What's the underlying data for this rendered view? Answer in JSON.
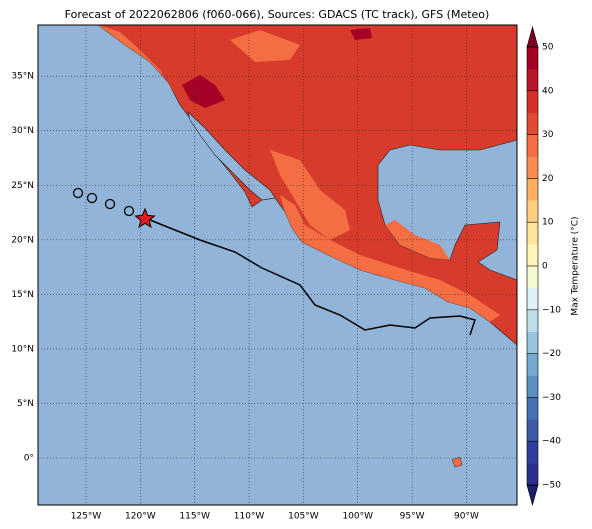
{
  "map": {
    "title": "Forecast of 2022062806 (f060-066), Sources: GDACS (TC track), GFS (Meteo)",
    "lat_ticks": [
      {
        "value": 0,
        "label": "0°"
      },
      {
        "value": 5,
        "label": "5°N"
      },
      {
        "value": 10,
        "label": "10°N"
      },
      {
        "value": 15,
        "label": "15°N"
      },
      {
        "value": 20,
        "label": "20°N"
      },
      {
        "value": 25,
        "label": "25°N"
      },
      {
        "value": 30,
        "label": "30°N"
      },
      {
        "value": 35,
        "label": "35°N"
      }
    ],
    "lon_ticks": [
      {
        "value": -125,
        "label": "125°W"
      },
      {
        "value": -120,
        "label": "120°W"
      },
      {
        "value": -115,
        "label": "115°W"
      },
      {
        "value": -110,
        "label": "110°W"
      },
      {
        "value": -105,
        "label": "105°W"
      },
      {
        "value": -100,
        "label": "100°W"
      },
      {
        "value": -95,
        "label": "95°W"
      },
      {
        "value": -90,
        "label": "90°W"
      }
    ],
    "colorbar": {
      "label": "Max Temperature (°C)",
      "ticks": [
        {
          "value": -50,
          "label": "−50"
        },
        {
          "value": -40,
          "label": "−40"
        },
        {
          "value": -30,
          "label": "−30"
        },
        {
          "value": -20,
          "label": "−20"
        },
        {
          "value": -10,
          "label": "−10"
        },
        0,
        10,
        20,
        30,
        40,
        50
      ]
    }
  }
}
